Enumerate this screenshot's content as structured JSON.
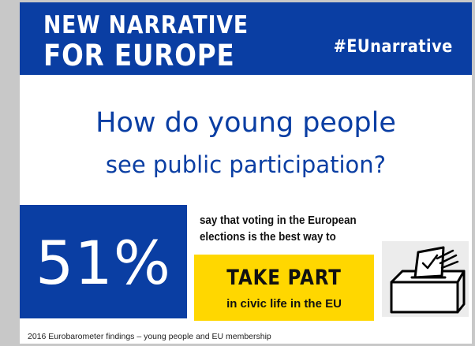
{
  "header": {
    "title_line1": "NEW NARRATIVE",
    "title_line2": "FOR EUROPE",
    "hashtag": "#EUnarrative"
  },
  "question": {
    "line1": "How do young people",
    "line2": "see public participation?"
  },
  "stat": {
    "value": "51%",
    "description": "say that voting in the European elections is the best way to"
  },
  "cta": {
    "main": "TAKE PART",
    "sub": "in civic life in the EU"
  },
  "icon": {
    "name": "ballot-box-icon"
  },
  "footer": {
    "source": "2016 Eurobarometer findings – young people and EU membership"
  },
  "colors": {
    "brand_blue": "#0a3ea3",
    "accent_yellow": "#ffd700",
    "background": "#ffffff"
  }
}
